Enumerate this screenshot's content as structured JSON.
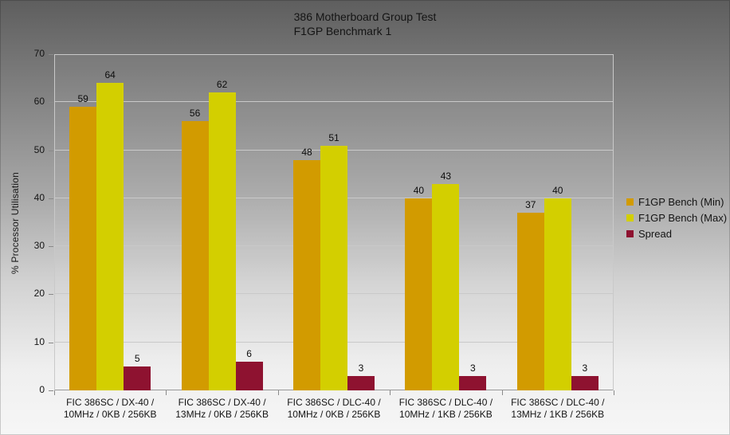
{
  "chart_data": {
    "type": "bar",
    "title": "386 Motherboard Group Test",
    "subtitle": "F1GP Benchmark 1",
    "ylabel": "% Processor Utilisation",
    "xlabel": "",
    "ylim": [
      0,
      70
    ],
    "ytick_step": 10,
    "grid": true,
    "legend_position": "right",
    "categories": [
      [
        "FIC 386SC / DX-40 /",
        "10MHz / 0KB / 256KB"
      ],
      [
        "FIC 386SC / DX-40 /",
        "13MHz / 0KB / 256KB"
      ],
      [
        "FIC 386SC / DLC-40 /",
        "10MHz / 0KB / 256KB"
      ],
      [
        "FIC 386SC / DLC-40 /",
        "10MHz / 1KB / 256KB"
      ],
      [
        "FIC 386SC / DLC-40 /",
        "13MHz / 1KB / 256KB"
      ]
    ],
    "series": [
      {
        "name": "F1GP Bench (Min)",
        "color": "#D29B00",
        "values": [
          59,
          56,
          48,
          40,
          37
        ]
      },
      {
        "name": "F1GP Bench (Max)",
        "color": "#D3CF00",
        "values": [
          64,
          62,
          51,
          43,
          40
        ]
      },
      {
        "name": "Spread",
        "color": "#8E1230",
        "values": [
          5,
          6,
          3,
          3,
          3
        ]
      }
    ]
  },
  "colors": {
    "bg_top": "#5E5E5E",
    "bg_mid": "#A8A8A8",
    "bg_bottom": "#F6F6F6",
    "gridline": "#C9C9C9",
    "axis": "#9A9A9A",
    "tick": "#8A8A8A"
  }
}
